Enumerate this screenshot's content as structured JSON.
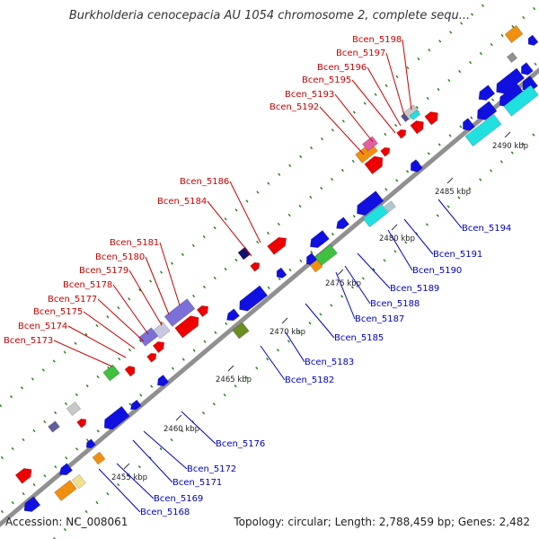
{
  "title": "Burkholderia cenocepacia AU 1054 chromosome 2, complete sequ...",
  "footer": {
    "accession": "Accession: NC_008061",
    "topology": "Topology: circular; Length: 2,788,459 bp; Genes: 2,482"
  },
  "colors": {
    "backbone": "#909090",
    "forward_gene": "#ee0000",
    "reverse_gene": "#1010e0",
    "label_forward": "#cc0000",
    "label_reverse": "#0000cc",
    "dots": "#2e7d1f",
    "cyan": "#20e0e0",
    "violet": "#7a70d8",
    "green": "#40c040",
    "orange": "#f09010",
    "olive": "#6a8f20"
  },
  "tick_labels": [
    "2455 kbp",
    "2460 kbp",
    "2465 kbp",
    "2470 kbp",
    "2475 kbp",
    "2480 kbp",
    "2485 kbp",
    "2490 kbp"
  ],
  "forward_labels": [
    "Bcen_5198",
    "Bcen_5197",
    "Bcen_5196",
    "Bcen_5195",
    "Bcen_5193",
    "Bcen_5192",
    "Bcen_5186",
    "Bcen_5184",
    "Bcen_5181",
    "Bcen_5180",
    "Bcen_5179",
    "Bcen_5178",
    "Bcen_5177",
    "Bcen_5175",
    "Bcen_5174",
    "Bcen_5173"
  ],
  "reverse_labels": [
    "Bcen_5194",
    "Bcen_5191",
    "Bcen_5190",
    "Bcen_5189",
    "Bcen_5188",
    "Bcen_5187",
    "Bcen_5185",
    "Bcen_5183",
    "Bcen_5182",
    "Bcen_5176",
    "Bcen_5172",
    "Bcen_5171",
    "Bcen_5169",
    "Bcen_5168"
  ]
}
